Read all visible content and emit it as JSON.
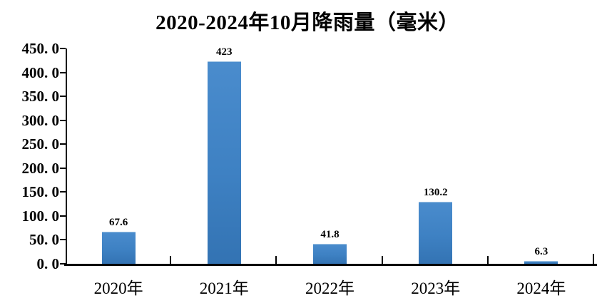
{
  "chart_data": {
    "type": "bar",
    "title": "2020-2024年10月降雨量（毫米）",
    "categories": [
      "2020年",
      "2021年",
      "2022年",
      "2023年",
      "2024年"
    ],
    "values": [
      67.6,
      423,
      41.8,
      130.2,
      6.3
    ],
    "value_labels": [
      "67.6",
      "423",
      "41.8",
      "130.2",
      "6.3"
    ],
    "xlabel": "",
    "ylabel": "",
    "ylim": [
      0,
      450
    ],
    "ytick_step": 50,
    "ytick_labels": [
      "450. 0",
      "400. 0",
      "350. 0",
      "300. 0",
      "250. 0",
      "200. 0",
      "150. 0",
      "100. 0",
      "50. 0",
      "0. 0"
    ],
    "grid": false,
    "legend_position": "none",
    "bar_color_top": "#4a8ccd",
    "bar_color_mid": "#3e81c3",
    "bar_color_bottom": "#3373b3",
    "bar_edge_highlight": "#9fc3e2",
    "axis_color": "#1a1a1a",
    "text_color": "#000000",
    "background_color": "#ffffff"
  }
}
